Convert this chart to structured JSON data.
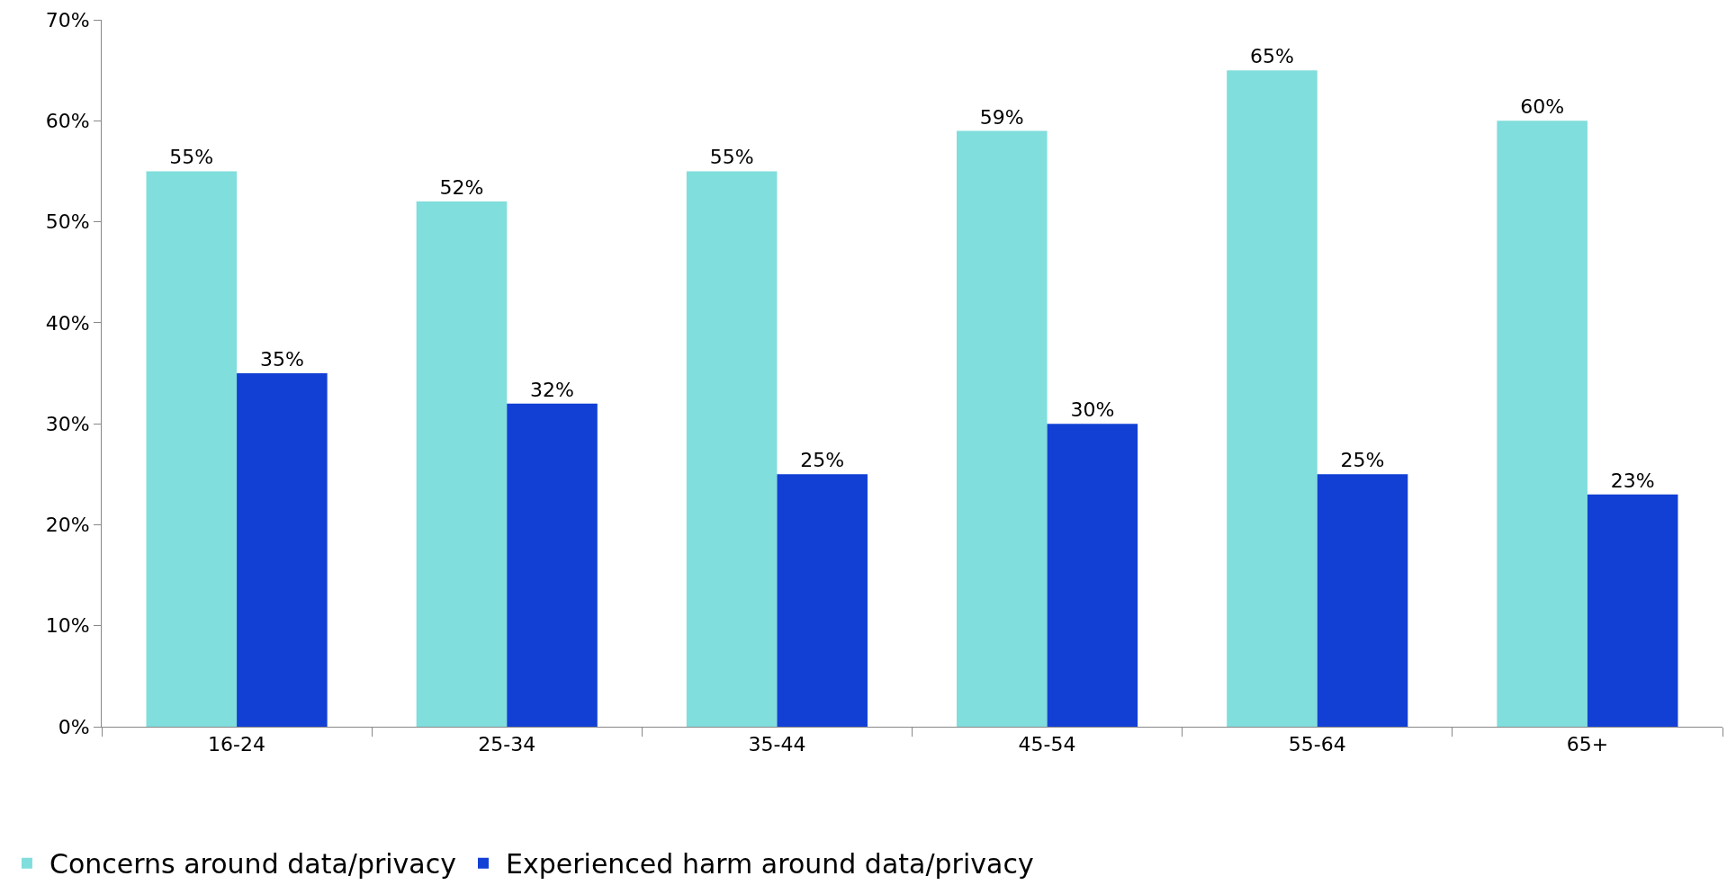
{
  "chart_data": {
    "type": "bar",
    "categories": [
      "16-24",
      "25-34",
      "35-44",
      "45-54",
      "55-64",
      "65+"
    ],
    "series": [
      {
        "name": "Concerns around data/privacy",
        "color": "#80dedc",
        "values": [
          55,
          52,
          55,
          59,
          65,
          60
        ],
        "value_labels": [
          "55%",
          "52%",
          "55%",
          "59%",
          "65%",
          "60%"
        ]
      },
      {
        "name": "Experienced harm around data/privacy",
        "color": "#1240d4",
        "values": [
          35,
          32,
          25,
          30,
          25,
          23
        ],
        "value_labels": [
          "35%",
          "32%",
          "25%",
          "30%",
          "25%",
          "23%"
        ]
      }
    ],
    "ylim": [
      0,
      70
    ],
    "yticks": [
      {
        "value": 0,
        "label": "0%"
      },
      {
        "value": 10,
        "label": "10%"
      },
      {
        "value": 20,
        "label": "20%"
      },
      {
        "value": 30,
        "label": "30%"
      },
      {
        "value": 40,
        "label": "40%"
      },
      {
        "value": 50,
        "label": "50%"
      },
      {
        "value": 60,
        "label": "60%"
      },
      {
        "value": 70,
        "label": "70%"
      }
    ],
    "legend": "bottom left"
  }
}
